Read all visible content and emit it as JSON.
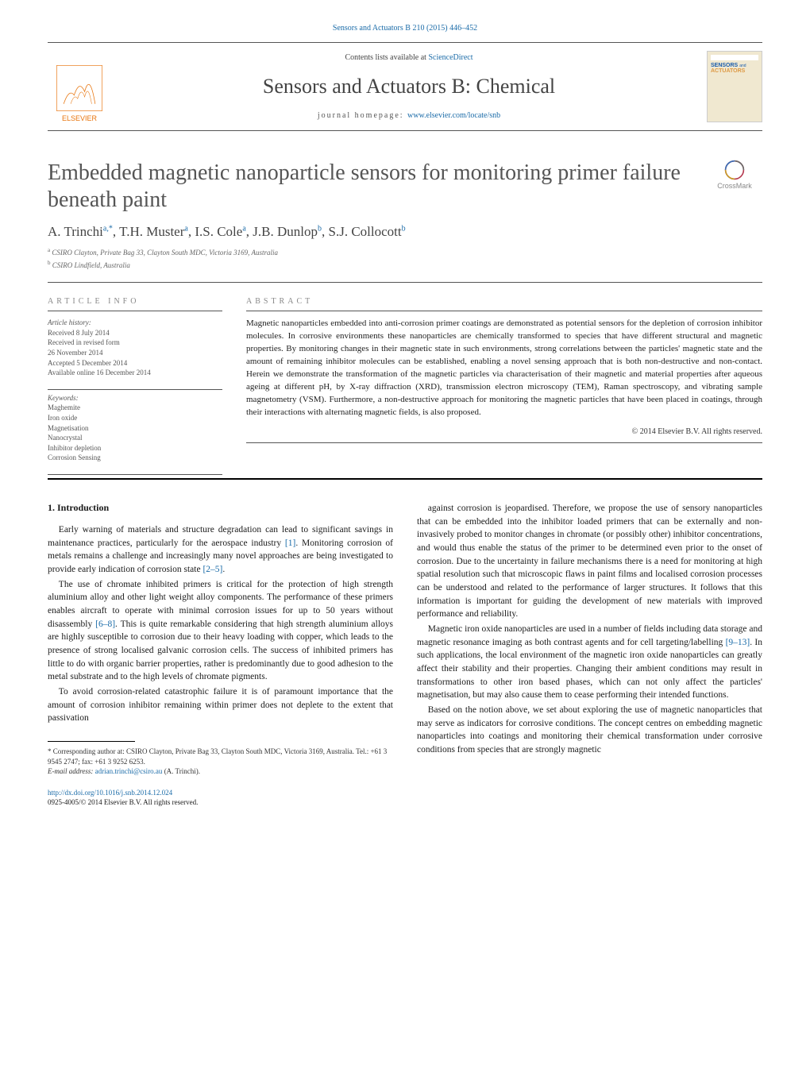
{
  "top_link": "Sensors and Actuators B 210 (2015) 446–452",
  "banner": {
    "contents_prefix": "Contents lists available at ",
    "contents_link": "ScienceDirect",
    "journal_title": "Sensors and Actuators B: Chemical",
    "homepage_prefix": "journal homepage: ",
    "homepage_url": "www.elsevier.com/locate/snb",
    "publisher": "ELSEVIER",
    "cover_label_top": "SENSORS",
    "cover_label_mid": "and",
    "cover_label_bot": "ACTUATORS"
  },
  "crossmark_label": "CrossMark",
  "title": "Embedded magnetic nanoparticle sensors for monitoring primer failure beneath paint",
  "authors_html": "A. Trinchi<sup>a,*</sup>, T.H. Muster<sup>a</sup>, I.S. Cole<sup>a</sup>, J.B. Dunlop<sup>b</sup>, S.J. Collocott<sup>b</sup>",
  "affiliations": [
    "CSIRO Clayton, Private Bag 33, Clayton South MDC, Victoria 3169, Australia",
    "CSIRO Lindfield, Australia"
  ],
  "article_info": {
    "label": "article info",
    "history_label": "Article history:",
    "history": [
      "Received 8 July 2014",
      "Received in revised form",
      "26 November 2014",
      "Accepted 5 December 2014",
      "Available online 16 December 2014"
    ],
    "keywords_label": "Keywords:",
    "keywords": [
      "Maghemite",
      "Iron oxide",
      "Magnetisation",
      "Nanocrystal",
      "Inhibitor depletion",
      "Corrosion Sensing"
    ]
  },
  "abstract": {
    "label": "abstract",
    "text": "Magnetic nanoparticles embedded into anti-corrosion primer coatings are demonstrated as potential sensors for the depletion of corrosion inhibitor molecules. In corrosive environments these nanoparticles are chemically transformed to species that have different structural and magnetic properties. By monitoring changes in their magnetic state in such environments, strong correlations between the particles' magnetic state and the amount of remaining inhibitor molecules can be established, enabling a novel sensing approach that is both non-destructive and non-contact. Herein we demonstrate the transformation of the magnetic particles via characterisation of their magnetic and material properties after aqueous ageing at different pH, by X-ray diffraction (XRD), transmission electron microscopy (TEM), Raman spectroscopy, and vibrating sample magnetometry (VSM). Furthermore, a non-destructive approach for monitoring the magnetic particles that have been placed in coatings, through their interactions with alternating magnetic fields, is also proposed.",
    "copyright": "© 2014 Elsevier B.V. All rights reserved."
  },
  "intro_heading": "1.  Introduction",
  "left_paras": [
    "Early warning of materials and structure degradation can lead to significant savings in maintenance practices, particularly for the aerospace industry <a>[1]</a>. Monitoring corrosion of metals remains a challenge and increasingly many novel approaches are being investigated to provide early indication of corrosion state <a>[2–5]</a>.",
    "The use of chromate inhibited primers is critical for the protection of high strength aluminium alloy and other light weight alloy components. The performance of these primers enables aircraft to operate with minimal corrosion issues for up to 50 years without disassembly <a>[6–8]</a>. This is quite remarkable considering that high strength aluminium alloys are highly susceptible to corrosion due to their heavy loading with copper, which leads to the presence of strong localised galvanic corrosion cells. The success of inhibited primers has little to do with organic barrier properties, rather is predominantly due to good adhesion to the metal substrate and to the high levels of chromate pigments.",
    "To avoid corrosion-related catastrophic failure it is of paramount importance that the amount of corrosion inhibitor remaining within primer does not deplete to the extent that passivation"
  ],
  "right_paras": [
    "against corrosion is jeopardised. Therefore, we propose the use of sensory nanoparticles that can be embedded into the inhibitor loaded primers that can be externally and non-invasively probed to monitor changes in chromate (or possibly other) inhibitor concentrations, and would thus enable the status of the primer to be determined even prior to the onset of corrosion. Due to the uncertainty in failure mechanisms there is a need for monitoring at high spatial resolution such that microscopic flaws in paint films and localised corrosion processes can be understood and related to the performance of larger structures. It follows that this information is important for guiding the development of new materials with improved performance and reliability.",
    "Magnetic iron oxide nanoparticles are used in a number of fields including data storage and magnetic resonance imaging as both contrast agents and for cell targeting/labelling <a>[9–13]</a>. In such applications, the local environment of the magnetic iron oxide nanoparticles can greatly affect their stability and their properties. Changing their ambient conditions may result in transformations to other iron based phases, which can not only affect the particles' magnetisation, but may also cause them to cease performing their intended functions.",
    "Based on the notion above, we set about exploring the use of magnetic nanoparticles that may serve as indicators for corrosive conditions. The concept centres on embedding magnetic nanoparticles into coatings and monitoring their chemical transformation under corrosive conditions from species that are strongly magnetic"
  ],
  "footnote": {
    "corr": "* Corresponding author at: CSIRO Clayton, Private Bag 33, Clayton South MDC, Victoria 3169, Australia. Tel.: +61 3 9545 2747; fax: +61 3 9252 6253.",
    "email_label": "E-mail address:",
    "email": "adrian.trinchi@csiro.au",
    "email_who": "(A. Trinchi)."
  },
  "bottom": {
    "doi": "http://dx.doi.org/10.1016/j.snb.2014.12.024",
    "issn_line": "0925-4005/© 2014 Elsevier B.V. All rights reserved."
  },
  "colors": {
    "link": "#1a6ba8",
    "elsevier": "#e8740c",
    "text_muted": "#555",
    "rule": "#000"
  }
}
